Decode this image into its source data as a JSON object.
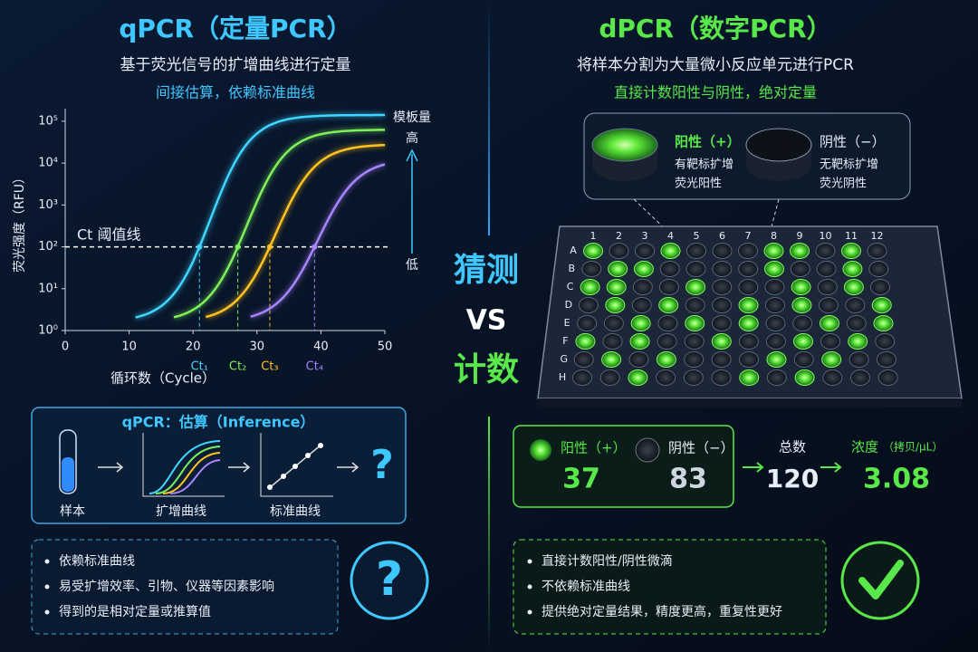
{
  "left": {
    "title": "qPCR（定量PCR）",
    "subtitle": "基于荧光信号的扩增曲线进行定量",
    "tagline": "间接估算，依赖标准曲线",
    "plot": {
      "ylabel": "荧光强度（RFU）",
      "xlabel": "循环数（Cycle）",
      "xlim": [
        0,
        50
      ],
      "xticks": [
        0,
        10,
        20,
        30,
        40,
        50
      ],
      "ylim": [
        1,
        200000
      ],
      "yscale": "log",
      "yticks": [
        {
          "value": 1,
          "label": "10⁰"
        },
        {
          "value": 10,
          "label": "10¹"
        },
        {
          "value": 100,
          "label": "10²"
        },
        {
          "value": 1000,
          "label": "10³"
        },
        {
          "value": 10000,
          "label": "10⁴"
        },
        {
          "value": 100000,
          "label": "10⁵"
        }
      ],
      "threshold": 100,
      "threshold_label": "Ct 阈值线",
      "ct": [
        {
          "label": "Ct₁",
          "value": 21,
          "color": "#3fd6ff"
        },
        {
          "label": "Ct₂",
          "value": 27,
          "color": "#7ff05a"
        },
        {
          "label": "Ct₃",
          "value": 32,
          "color": "#ffc21f"
        },
        {
          "label": "Ct₄",
          "value": 39,
          "color": "#a884ff"
        }
      ],
      "template_label": "模板量",
      "high": "高",
      "low": "低"
    },
    "flow": {
      "title": "qPCR：估算（Inference）",
      "steps": [
        "样本",
        "扩增曲线",
        "标准曲线"
      ],
      "result": "?"
    },
    "bullets": [
      "依赖标准曲线",
      "易受扩增效率、引物、仪器等因素影响",
      "得到的是相对定量或推算值"
    ],
    "icon": "?"
  },
  "center": {
    "top": "猜测",
    "vs": "VS",
    "bottom": "计数"
  },
  "right": {
    "title": "dPCR（数字PCR）",
    "subtitle": "将样本分割为大量微小反应单元进行PCR",
    "tagline": "直接计数阳性与阴性，绝对定量",
    "wells": {
      "positive": {
        "label": "阳性（+）",
        "lines": [
          "有靶标扩增",
          "荧光阳性"
        ]
      },
      "negative": {
        "label": "阴性（−）",
        "lines": [
          "无靶标扩增",
          "荧光阴性"
        ]
      }
    },
    "plate": {
      "columns": [
        "1",
        "2",
        "3",
        "4",
        "5",
        "6",
        "7",
        "8",
        "9",
        "10",
        "11",
        "12"
      ],
      "rows": [
        "A",
        "B",
        "C",
        "D",
        "E",
        "F",
        "G",
        "H"
      ]
    },
    "results": {
      "positive": {
        "label": "阳性（+）",
        "value": 37
      },
      "negative": {
        "label": "阴性（−）",
        "value": 83
      },
      "total": {
        "label": "总数",
        "value": 120
      },
      "concentration": {
        "label": "浓度",
        "unit": "（拷贝/μL）",
        "value": 3.08
      }
    },
    "bullets": [
      "直接计数阳性/阴性微滴",
      "不依赖标准曲线",
      "提供绝对定量结果，精度更高，重复性更好"
    ]
  }
}
